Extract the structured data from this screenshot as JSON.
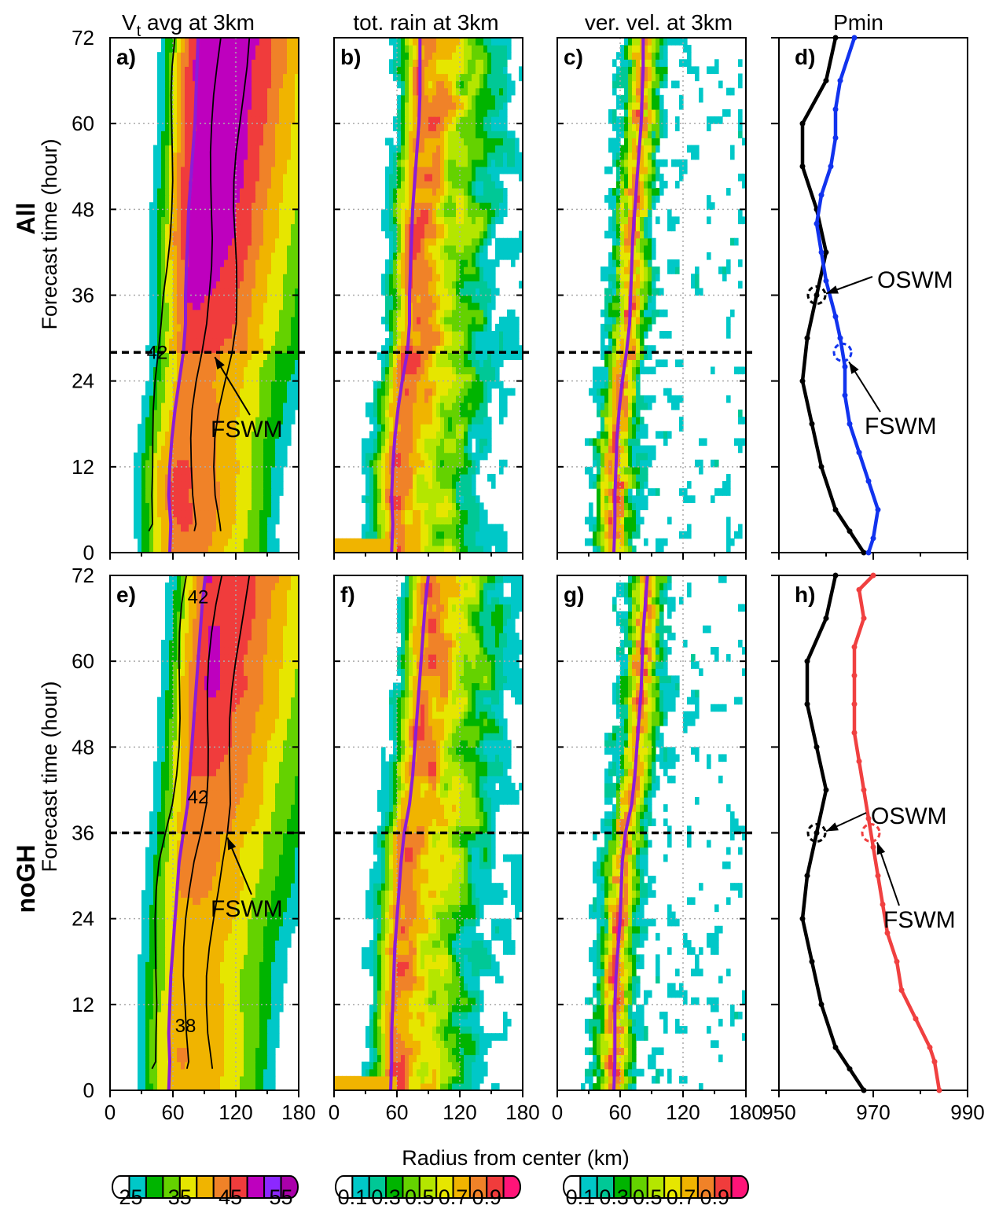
{
  "figure": {
    "column_titles": [
      {
        "text": "V",
        "sub": "t",
        "rest": " avg at 3km"
      },
      {
        "text": "tot. rain at 3km"
      },
      {
        "text": "ver. vel. at 3km"
      },
      {
        "text": "Pmin"
      }
    ],
    "row_labels": [
      "All",
      "noGH"
    ],
    "y_axis_title": "Forecast time (hour)",
    "x_axis_title": "Radius from center (km)"
  },
  "chart_data": [
    {
      "panel": "a)",
      "type": "heatmap",
      "row": "All",
      "column": "Vt avg at 3km",
      "x": {
        "label": "",
        "range": [
          0,
          180
        ],
        "ticks": [
          0,
          60,
          120,
          180
        ]
      },
      "y": {
        "label": "Forecast time (hour)",
        "range": [
          0,
          72
        ],
        "ticks": [
          0,
          12,
          24,
          36,
          48,
          60,
          72
        ]
      },
      "contour_labels": [
        "42"
      ],
      "annotations": [
        {
          "text": "FSWM",
          "hour": 28
        }
      ],
      "marker_hour": 28,
      "rmw_curve": [
        [
          57,
          0
        ],
        [
          58,
          4
        ],
        [
          56,
          8
        ],
        [
          57,
          12
        ],
        [
          59,
          16
        ],
        [
          62,
          20
        ],
        [
          66,
          24
        ],
        [
          70,
          28
        ],
        [
          72,
          32
        ],
        [
          72,
          36
        ],
        [
          73,
          40
        ],
        [
          74,
          44
        ],
        [
          75,
          48
        ],
        [
          77,
          52
        ],
        [
          79,
          56
        ],
        [
          81,
          60
        ],
        [
          82,
          64
        ],
        [
          83,
          68
        ],
        [
          84,
          72
        ]
      ]
    },
    {
      "panel": "b)",
      "type": "heatmap",
      "row": "All",
      "column": "tot. rain at 3km",
      "x": {
        "range": [
          0,
          180
        ],
        "ticks": [
          0,
          60,
          120,
          180
        ]
      },
      "y": {
        "range": [
          0,
          72
        ],
        "ticks": [
          0,
          12,
          24,
          36,
          48,
          60,
          72
        ]
      },
      "marker_hour": 28,
      "rmw_curve": [
        [
          55,
          0
        ],
        [
          56,
          4
        ],
        [
          55,
          8
        ],
        [
          56,
          12
        ],
        [
          58,
          16
        ],
        [
          61,
          20
        ],
        [
          65,
          24
        ],
        [
          70,
          28
        ],
        [
          72,
          32
        ],
        [
          72,
          36
        ],
        [
          73,
          40
        ],
        [
          74,
          44
        ],
        [
          75,
          48
        ],
        [
          77,
          52
        ],
        [
          79,
          56
        ],
        [
          81,
          60
        ],
        [
          82,
          64
        ],
        [
          82,
          68
        ],
        [
          82,
          72
        ]
      ]
    },
    {
      "panel": "c)",
      "type": "heatmap",
      "row": "All",
      "column": "ver. vel. at 3km",
      "x": {
        "range": [
          0,
          180
        ],
        "ticks": [
          0,
          60,
          120,
          180
        ]
      },
      "y": {
        "range": [
          0,
          72
        ],
        "ticks": [
          0,
          12,
          24,
          36,
          48,
          60,
          72
        ]
      },
      "marker_hour": 28,
      "rmw_curve": [
        [
          54,
          0
        ],
        [
          55,
          4
        ],
        [
          55,
          8
        ],
        [
          56,
          12
        ],
        [
          57,
          16
        ],
        [
          59,
          20
        ],
        [
          62,
          24
        ],
        [
          66,
          28
        ],
        [
          69,
          32
        ],
        [
          70,
          36
        ],
        [
          71,
          40
        ],
        [
          72,
          44
        ],
        [
          74,
          48
        ],
        [
          76,
          52
        ],
        [
          78,
          56
        ],
        [
          80,
          60
        ],
        [
          81,
          64
        ],
        [
          82,
          68
        ],
        [
          82,
          72
        ]
      ]
    },
    {
      "panel": "d)",
      "type": "line",
      "row": "All",
      "column": "Pmin",
      "x": {
        "range": [
          950,
          990
        ],
        "ticks": [
          950,
          970,
          990
        ]
      },
      "y": {
        "range": [
          0,
          72
        ],
        "ticks": [
          0,
          12,
          24,
          36,
          48,
          60,
          72
        ]
      },
      "series": [
        {
          "color": "#000000",
          "points": [
            [
              968,
              0
            ],
            [
              965,
              3
            ],
            [
              962,
              6
            ],
            [
              959,
              12
            ],
            [
              957,
              18
            ],
            [
              955,
              24
            ],
            [
              956,
              30
            ],
            [
              958,
              36
            ],
            [
              960,
              42
            ],
            [
              958,
              48
            ],
            [
              955,
              54
            ],
            [
              955,
              60
            ],
            [
              960,
              66
            ],
            [
              962,
              72
            ]
          ]
        },
        {
          "color": "#1133ee",
          "points": [
            [
              969,
              0
            ],
            [
              970,
              2
            ],
            [
              971,
              6
            ],
            [
              969,
              10
            ],
            [
              967,
              14
            ],
            [
              965,
              18
            ],
            [
              964,
              22
            ],
            [
              964,
              26
            ],
            [
              963,
              30
            ],
            [
              962,
              33
            ],
            [
              960,
              38
            ],
            [
              959,
              42
            ],
            [
              958,
              46
            ],
            [
              959,
              50
            ],
            [
              961,
              54
            ],
            [
              962,
              58
            ],
            [
              962,
              62
            ],
            [
              963,
              66
            ],
            [
              966,
              72
            ]
          ]
        }
      ],
      "annotations": [
        {
          "text": "OSWM",
          "series": 0,
          "hour": 36
        },
        {
          "text": "FSWM",
          "series": 1,
          "hour": 28
        }
      ]
    },
    {
      "panel": "e)",
      "type": "heatmap",
      "row": "noGH",
      "column": "Vt avg at 3km",
      "x": {
        "label": "",
        "range": [
          0,
          180
        ],
        "ticks": [
          0,
          60,
          120,
          180
        ]
      },
      "y": {
        "label": "Forecast time (hour)",
        "range": [
          0,
          72
        ],
        "ticks": [
          0,
          12,
          24,
          36,
          48,
          60,
          72
        ]
      },
      "contour_labels": [
        "42",
        "42",
        "38"
      ],
      "annotations": [
        {
          "text": "FSWM",
          "hour": 36
        }
      ],
      "marker_hour": 36,
      "rmw_curve": [
        [
          56,
          0
        ],
        [
          57,
          4
        ],
        [
          56,
          8
        ],
        [
          57,
          12
        ],
        [
          58,
          16
        ],
        [
          60,
          20
        ],
        [
          62,
          24
        ],
        [
          64,
          28
        ],
        [
          66,
          32
        ],
        [
          70,
          36
        ],
        [
          74,
          40
        ],
        [
          76,
          44
        ],
        [
          78,
          48
        ],
        [
          80,
          52
        ],
        [
          82,
          56
        ],
        [
          84,
          60
        ],
        [
          86,
          64
        ],
        [
          88,
          68
        ],
        [
          91,
          72
        ]
      ]
    },
    {
      "panel": "f)",
      "type": "heatmap",
      "row": "noGH",
      "column": "tot. rain at 3km",
      "x": {
        "range": [
          0,
          180
        ],
        "ticks": [
          0,
          60,
          120,
          180
        ]
      },
      "y": {
        "range": [
          0,
          72
        ],
        "ticks": [
          0,
          12,
          24,
          36,
          48,
          60,
          72
        ]
      },
      "marker_hour": 36,
      "rmw_curve": [
        [
          54,
          0
        ],
        [
          55,
          4
        ],
        [
          55,
          8
        ],
        [
          56,
          12
        ],
        [
          57,
          16
        ],
        [
          58,
          20
        ],
        [
          60,
          24
        ],
        [
          62,
          28
        ],
        [
          64,
          32
        ],
        [
          67,
          36
        ],
        [
          72,
          40
        ],
        [
          75,
          44
        ],
        [
          77,
          48
        ],
        [
          79,
          52
        ],
        [
          81,
          56
        ],
        [
          83,
          60
        ],
        [
          85,
          64
        ],
        [
          87,
          68
        ],
        [
          90,
          72
        ]
      ]
    },
    {
      "panel": "g)",
      "type": "heatmap",
      "row": "noGH",
      "column": "ver. vel. at 3km",
      "x": {
        "range": [
          0,
          180
        ],
        "ticks": [
          0,
          60,
          120,
          180
        ]
      },
      "y": {
        "range": [
          0,
          72
        ],
        "ticks": [
          0,
          12,
          24,
          36,
          48,
          60,
          72
        ]
      },
      "marker_hour": 36,
      "rmw_curve": [
        [
          54,
          0
        ],
        [
          55,
          4
        ],
        [
          55,
          8
        ],
        [
          55,
          12
        ],
        [
          56,
          16
        ],
        [
          58,
          20
        ],
        [
          60,
          24
        ],
        [
          61,
          28
        ],
        [
          62,
          32
        ],
        [
          65,
          36
        ],
        [
          71,
          40
        ],
        [
          74,
          44
        ],
        [
          76,
          48
        ],
        [
          78,
          52
        ],
        [
          80,
          56
        ],
        [
          81,
          60
        ],
        [
          82,
          64
        ],
        [
          84,
          68
        ],
        [
          86,
          72
        ]
      ]
    },
    {
      "panel": "h)",
      "type": "line",
      "row": "noGH",
      "column": "Pmin",
      "x": {
        "range": [
          950,
          990
        ],
        "ticks": [
          950,
          970,
          990
        ]
      },
      "y": {
        "range": [
          0,
          72
        ],
        "ticks": [
          0,
          12,
          24,
          36,
          48,
          60,
          72
        ]
      },
      "series": [
        {
          "color": "#000000",
          "points": [
            [
              968,
              0
            ],
            [
              965,
              3
            ],
            [
              962,
              6
            ],
            [
              959,
              12
            ],
            [
              957,
              18
            ],
            [
              955,
              24
            ],
            [
              956,
              30
            ],
            [
              958,
              36
            ],
            [
              960,
              42
            ],
            [
              958,
              48
            ],
            [
              956,
              54
            ],
            [
              956,
              60
            ],
            [
              960,
              66
            ],
            [
              962,
              72
            ]
          ]
        },
        {
          "color": "#f04040",
          "points": [
            [
              984,
              0
            ],
            [
              983,
              4
            ],
            [
              982,
              6
            ],
            [
              979,
              10
            ],
            [
              976,
              14
            ],
            [
              975,
              18
            ],
            [
              973,
              22
            ],
            [
              972,
              26
            ],
            [
              971,
              30
            ],
            [
              970,
              34
            ],
            [
              969,
              38
            ],
            [
              968,
              42
            ],
            [
              967,
              46
            ],
            [
              966,
              50
            ],
            [
              966,
              54
            ],
            [
              966,
              58
            ],
            [
              966,
              62
            ],
            [
              968,
              66
            ],
            [
              967,
              70
            ],
            [
              970,
              72
            ]
          ]
        }
      ],
      "annotations": [
        {
          "text": "OSWM",
          "series": 0,
          "hour": 36
        },
        {
          "text": "FSWM",
          "series": 1,
          "hour": 36
        }
      ]
    }
  ],
  "colorbars": [
    {
      "labels": [
        "25",
        "35",
        "45",
        "55"
      ],
      "colors": [
        "#ffffff",
        "#00c8c8",
        "#00b400",
        "#64d200",
        "#e6e600",
        "#f0b400",
        "#f08228",
        "#f03c3c",
        "#be00be",
        "#8c28ff",
        "#aa00aa"
      ]
    },
    {
      "labels": [
        "0.1",
        "0.3",
        "0.5",
        "0.7",
        "0.9"
      ],
      "colors": [
        "#ffffff",
        "#00c8c8",
        "#00c896",
        "#00b400",
        "#64d200",
        "#b4e600",
        "#e6e600",
        "#f0b400",
        "#f08228",
        "#f03c3c",
        "#ff1478"
      ]
    },
    {
      "labels": [
        "0.1",
        "0.3",
        "0.5",
        "0.7",
        "0.9"
      ],
      "colors": [
        "#ffffff",
        "#00c8c8",
        "#00c896",
        "#00b400",
        "#64d200",
        "#b4e600",
        "#e6e600",
        "#f0b400",
        "#f08228",
        "#f03c3c",
        "#ff1478"
      ]
    }
  ]
}
